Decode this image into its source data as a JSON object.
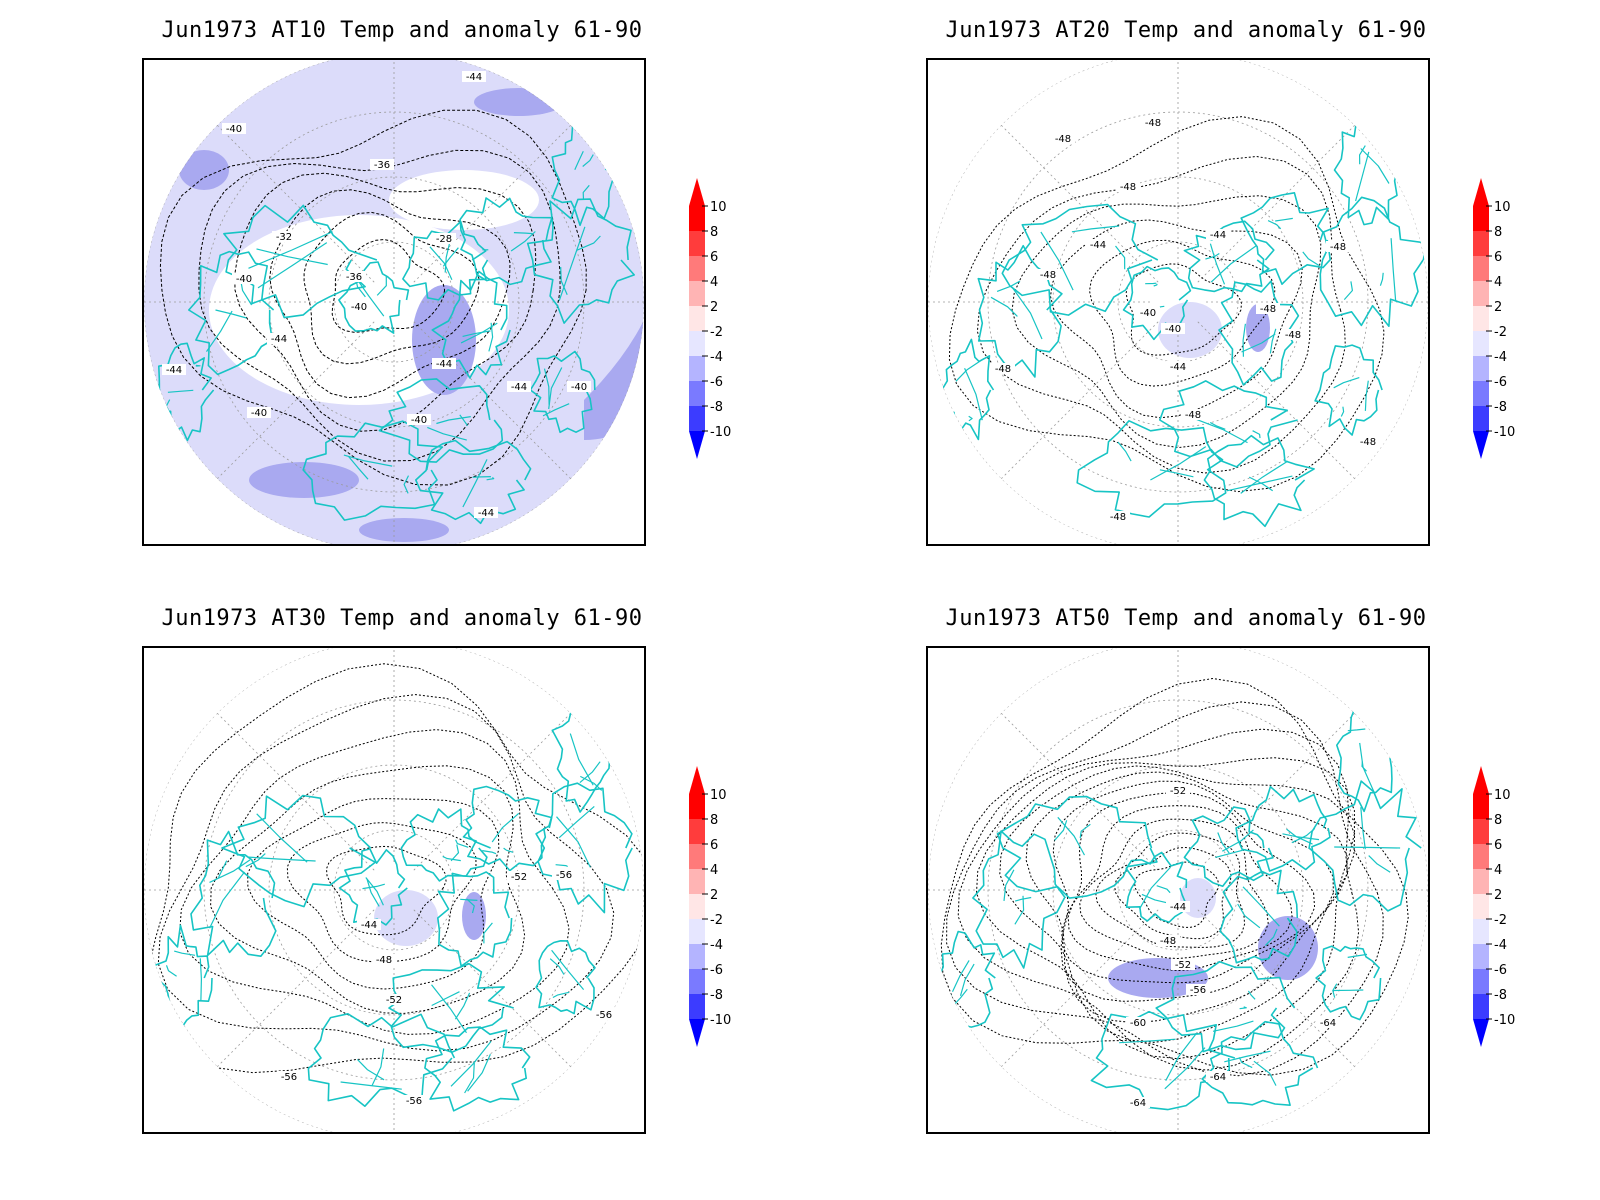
{
  "panels": [
    {
      "id": "at10",
      "title": "Jun1973 AT10 Temp and anomaly 61-90",
      "contour_labels": [
        "-44",
        "-40",
        "-36",
        "-32",
        "-28",
        "-36",
        "-40",
        "-44",
        "-40",
        "-44",
        "-40",
        "-44",
        "-40",
        "-44",
        "-40",
        "-44"
      ],
      "anomaly_shading": "strong"
    },
    {
      "id": "at20",
      "title": "Jun1973 AT20 Temp and anomaly 61-90",
      "contour_labels": [
        "-48",
        "-48",
        "-48",
        "-44",
        "-44",
        "-48",
        "-40",
        "-40",
        "-44",
        "-48",
        "-48",
        "-48",
        "-48",
        "-48",
        "-48",
        "-48"
      ],
      "anomaly_shading": "weak"
    },
    {
      "id": "at30",
      "title": "Jun1973 AT30 Temp and anomaly 61-90",
      "contour_labels": [
        "-44",
        "-48",
        "-52",
        "-52",
        "-56",
        "-56",
        "-56",
        "-56"
      ],
      "anomaly_shading": "weak"
    },
    {
      "id": "at50",
      "title": "Jun1973 AT50 Temp and anomaly 61-90",
      "contour_labels": [
        "-52",
        "-44",
        "-48",
        "-52",
        "-56",
        "-60",
        "-64",
        "-64",
        "-64"
      ],
      "anomaly_shading": "moderate"
    }
  ],
  "colorbar": {
    "labels": [
      "10",
      "8",
      "6",
      "4",
      "2",
      "-2",
      "-4",
      "-6",
      "-8",
      "-10"
    ],
    "colors": [
      "#ff0000",
      "#ff3c3c",
      "#ff7a7a",
      "#ffb4b4",
      "#ffe6e6",
      "#e6e6ff",
      "#b4b4ff",
      "#7a7aff",
      "#3c3cff",
      "#0000ff"
    ]
  },
  "colors": {
    "coastline": "#17c4c4",
    "contour": "#000000",
    "grid": "#9a9a9a",
    "anomaly_light": "#dcdcfa",
    "anomaly_mid": "#a9a9f0"
  }
}
